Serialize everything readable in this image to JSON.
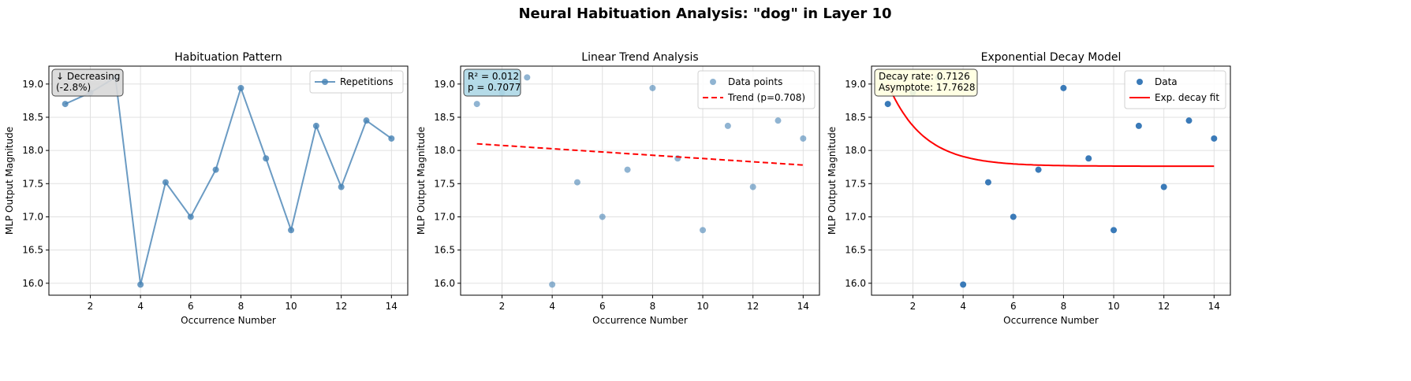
{
  "chart_data": [
    {
      "type": "line",
      "suptitle": "Neural Habituation Analysis: \"dog\" in Layer 10",
      "title": "Habituation Pattern",
      "xlabel": "Occurrence Number",
      "ylabel": "MLP Output Magnitude",
      "xlim": [
        0.35,
        14.65
      ],
      "ylim": [
        15.82,
        19.27
      ],
      "xticks": [
        2,
        4,
        6,
        8,
        10,
        12,
        14
      ],
      "yticks": [
        16.0,
        16.5,
        17.0,
        17.5,
        18.0,
        18.5,
        19.0
      ],
      "grid": true,
      "x": [
        1,
        2,
        3,
        4,
        5,
        6,
        7,
        8,
        9,
        10,
        11,
        12,
        13,
        14
      ],
      "series": [
        {
          "name": "Repetitions",
          "values": [
            18.7,
            18.87,
            19.1,
            15.98,
            17.52,
            17.0,
            17.71,
            18.94,
            17.88,
            16.8,
            18.37,
            17.45,
            18.45,
            18.18
          ],
          "color": "#4682b4"
        }
      ],
      "legend": "top-right",
      "annotation": [
        "↓ Decreasing",
        "(-2.8%)"
      ]
    },
    {
      "type": "scatter",
      "title": "Linear Trend Analysis",
      "xlabel": "Occurrence Number",
      "ylabel": "MLP Output Magnitude",
      "xlim": [
        0.35,
        14.65
      ],
      "ylim": [
        15.82,
        19.27
      ],
      "xticks": [
        2,
        4,
        6,
        8,
        10,
        12,
        14
      ],
      "yticks": [
        16.0,
        16.5,
        17.0,
        17.5,
        18.0,
        18.5,
        19.0
      ],
      "grid": true,
      "x": [
        1,
        2,
        3,
        4,
        5,
        6,
        7,
        8,
        9,
        10,
        11,
        12,
        13,
        14
      ],
      "series": [
        {
          "name": "Data points",
          "values": [
            18.7,
            18.87,
            19.1,
            15.98,
            17.52,
            17.0,
            17.71,
            18.94,
            17.88,
            16.8,
            18.37,
            17.45,
            18.45,
            18.18
          ],
          "color": "#4682b4"
        },
        {
          "name": "Trend (p=0.708)",
          "line": [
            [
              1,
              18.1
            ],
            [
              14,
              17.78
            ]
          ],
          "color": "#ff0000"
        }
      ],
      "legend": "top-right",
      "annotation": [
        "R² = 0.012",
        "p = 0.7077"
      ]
    },
    {
      "type": "scatter",
      "title": "Exponential Decay Model",
      "xlabel": "Occurrence Number",
      "ylabel": "MLP Output Magnitude",
      "xlim": [
        0.35,
        14.65
      ],
      "ylim": [
        15.82,
        19.27
      ],
      "xticks": [
        2,
        4,
        6,
        8,
        10,
        12,
        14
      ],
      "yticks": [
        16.0,
        16.5,
        17.0,
        17.5,
        18.0,
        18.5,
        19.0
      ],
      "grid": true,
      "x": [
        1,
        2,
        3,
        4,
        5,
        6,
        7,
        8,
        9,
        10,
        11,
        12,
        13,
        14
      ],
      "series": [
        {
          "name": "Data",
          "values": [
            18.7,
            18.87,
            19.1,
            15.98,
            17.52,
            17.0,
            17.71,
            18.94,
            17.88,
            16.8,
            18.37,
            17.45,
            18.45,
            18.18
          ],
          "color": "#1f5f9f"
        },
        {
          "name": "Exp. decay fit",
          "fit": {
            "a": 1.24,
            "b": 0.7126,
            "c": 17.7628,
            "x0": 1
          },
          "color": "#ff0000"
        }
      ],
      "legend": "top-right",
      "annotation": [
        "Decay rate: 0.7126",
        "Asymptote: 17.7628"
      ]
    }
  ]
}
